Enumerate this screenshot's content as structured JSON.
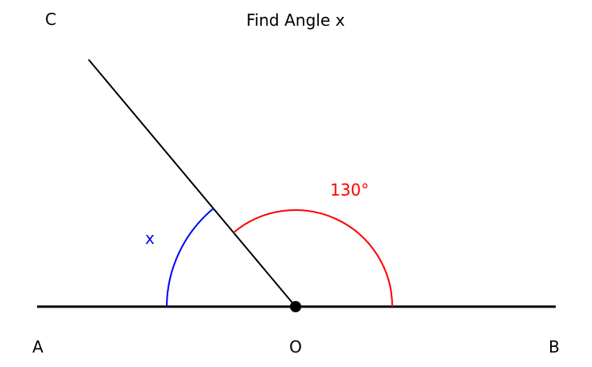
{
  "title": "Find Angle x",
  "points": {
    "A": "A",
    "B": "B",
    "C": "C",
    "O": "O"
  },
  "angles": {
    "known_label": "130°",
    "known_value_deg": 130,
    "unknown_label": "x"
  },
  "colors": {
    "line": "#000000",
    "known_arc": "#ff0000",
    "unknown_arc": "#0000ff",
    "vertex": "#000000"
  }
}
